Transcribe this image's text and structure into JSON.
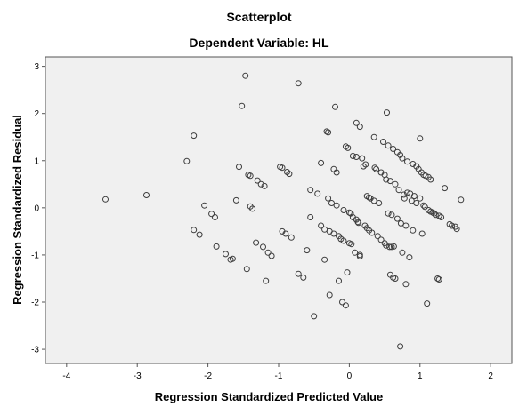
{
  "chart_data": {
    "type": "scatter",
    "title": "Scatterplot",
    "subtitle": "Dependent Variable: HL",
    "xlabel": "Regression Standardized Predicted Value",
    "ylabel": "Regression Standardized Residual",
    "xlim": [
      -4.3,
      2.3
    ],
    "ylim": [
      -3.3,
      3.2
    ],
    "x_ticks": [
      "-4",
      "-3",
      "-2",
      "-1",
      "0",
      "1",
      "2"
    ],
    "y_ticks": [
      "3",
      "2",
      "1",
      "0",
      "-1",
      "-2",
      "-3"
    ],
    "grid": false,
    "points": [
      [
        -3.45,
        0.18
      ],
      [
        -2.87,
        0.27
      ],
      [
        -2.3,
        0.99
      ],
      [
        -2.2,
        1.53
      ],
      [
        -2.2,
        -0.47
      ],
      [
        -2.12,
        -0.57
      ],
      [
        -2.05,
        0.05
      ],
      [
        -1.95,
        -0.13
      ],
      [
        -1.9,
        -0.2
      ],
      [
        -1.88,
        -0.82
      ],
      [
        -1.75,
        -0.98
      ],
      [
        -1.68,
        -1.1
      ],
      [
        -1.65,
        -1.08
      ],
      [
        -1.6,
        0.16
      ],
      [
        -1.56,
        0.87
      ],
      [
        -1.52,
        2.16
      ],
      [
        -1.47,
        2.8
      ],
      [
        -1.45,
        -1.3
      ],
      [
        -1.43,
        0.7
      ],
      [
        -1.4,
        0.68
      ],
      [
        -1.4,
        0.03
      ],
      [
        -1.37,
        -0.02
      ],
      [
        -1.32,
        -0.74
      ],
      [
        -1.3,
        0.58
      ],
      [
        -1.25,
        0.5
      ],
      [
        -1.22,
        -0.83
      ],
      [
        -1.2,
        0.46
      ],
      [
        -1.18,
        -1.55
      ],
      [
        -1.15,
        -0.95
      ],
      [
        -1.1,
        -1.02
      ],
      [
        -0.98,
        0.87
      ],
      [
        -0.95,
        0.85
      ],
      [
        -0.95,
        -0.5
      ],
      [
        -0.9,
        -0.55
      ],
      [
        -0.88,
        0.76
      ],
      [
        -0.85,
        0.72
      ],
      [
        -0.82,
        -0.63
      ],
      [
        -0.72,
        2.64
      ],
      [
        -0.72,
        -1.4
      ],
      [
        -0.65,
        -1.48
      ],
      [
        -0.6,
        -0.9
      ],
      [
        -0.55,
        0.38
      ],
      [
        -0.55,
        -0.2
      ],
      [
        -0.5,
        -2.3
      ],
      [
        -0.45,
        0.3
      ],
      [
        -0.4,
        0.95
      ],
      [
        -0.4,
        -0.38
      ],
      [
        -0.35,
        -0.46
      ],
      [
        -0.35,
        -1.1
      ],
      [
        -0.32,
        1.62
      ],
      [
        -0.3,
        1.6
      ],
      [
        -0.3,
        0.2
      ],
      [
        -0.28,
        -0.5
      ],
      [
        -0.28,
        -1.85
      ],
      [
        -0.25,
        0.1
      ],
      [
        -0.22,
        0.82
      ],
      [
        -0.22,
        -0.55
      ],
      [
        -0.2,
        2.14
      ],
      [
        -0.18,
        0.75
      ],
      [
        -0.18,
        0.05
      ],
      [
        -0.15,
        -0.6
      ],
      [
        -0.15,
        -1.55
      ],
      [
        -0.12,
        -0.66
      ],
      [
        -0.1,
        -2.0
      ],
      [
        -0.08,
        -0.05
      ],
      [
        -0.08,
        -0.7
      ],
      [
        -0.05,
        -2.07
      ],
      [
        -0.05,
        1.3
      ],
      [
        -0.03,
        -1.37
      ],
      [
        -0.02,
        1.27
      ],
      [
        0.0,
        -0.1
      ],
      [
        0.0,
        -0.75
      ],
      [
        0.02,
        -0.12
      ],
      [
        0.03,
        -0.77
      ],
      [
        0.05,
        1.1
      ],
      [
        0.05,
        -0.2
      ],
      [
        0.08,
        -0.95
      ],
      [
        0.1,
        1.8
      ],
      [
        0.1,
        1.08
      ],
      [
        0.1,
        -0.25
      ],
      [
        0.12,
        -0.3
      ],
      [
        0.13,
        -0.32
      ],
      [
        0.15,
        1.72
      ],
      [
        0.15,
        -1.0
      ],
      [
        0.15,
        -1.03
      ],
      [
        0.18,
        1.05
      ],
      [
        0.2,
        0.88
      ],
      [
        0.22,
        -0.38
      ],
      [
        0.23,
        0.92
      ],
      [
        0.25,
        0.25
      ],
      [
        0.25,
        -0.43
      ],
      [
        0.28,
        -0.48
      ],
      [
        0.28,
        0.22
      ],
      [
        0.3,
        0.2
      ],
      [
        0.32,
        -0.53
      ],
      [
        0.35,
        1.5
      ],
      [
        0.35,
        0.15
      ],
      [
        0.36,
        0.85
      ],
      [
        0.38,
        0.82
      ],
      [
        0.4,
        -0.6
      ],
      [
        0.42,
        0.1
      ],
      [
        0.45,
        -0.68
      ],
      [
        0.45,
        0.75
      ],
      [
        0.48,
        1.4
      ],
      [
        0.5,
        0.7
      ],
      [
        0.5,
        -0.75
      ],
      [
        0.52,
        -0.8
      ],
      [
        0.52,
        0.6
      ],
      [
        0.53,
        2.02
      ],
      [
        0.55,
        1.32
      ],
      [
        0.55,
        -0.12
      ],
      [
        0.57,
        -0.83
      ],
      [
        0.58,
        0.57
      ],
      [
        0.58,
        -1.42
      ],
      [
        0.6,
        -0.15
      ],
      [
        0.6,
        -0.83
      ],
      [
        0.62,
        1.25
      ],
      [
        0.62,
        -1.48
      ],
      [
        0.63,
        -0.82
      ],
      [
        0.65,
        0.5
      ],
      [
        0.65,
        -1.5
      ],
      [
        0.68,
        1.18
      ],
      [
        0.68,
        -0.23
      ],
      [
        0.7,
        0.38
      ],
      [
        0.72,
        -2.94
      ],
      [
        0.72,
        1.12
      ],
      [
        0.73,
        -0.33
      ],
      [
        0.75,
        1.05
      ],
      [
        0.75,
        -0.95
      ],
      [
        0.77,
        0.28
      ],
      [
        0.78,
        0.2
      ],
      [
        0.8,
        -1.62
      ],
      [
        0.8,
        -0.38
      ],
      [
        0.82,
        0.32
      ],
      [
        0.82,
        0.98
      ],
      [
        0.85,
        -1.05
      ],
      [
        0.86,
        0.3
      ],
      [
        0.88,
        0.15
      ],
      [
        0.9,
        0.93
      ],
      [
        0.9,
        -0.48
      ],
      [
        0.92,
        0.25
      ],
      [
        0.95,
        0.88
      ],
      [
        0.95,
        0.1
      ],
      [
        0.98,
        0.82
      ],
      [
        1.0,
        1.47
      ],
      [
        1.0,
        0.2
      ],
      [
        1.02,
        0.75
      ],
      [
        1.03,
        -0.55
      ],
      [
        1.05,
        0.05
      ],
      [
        1.05,
        0.7
      ],
      [
        1.07,
        0.02
      ],
      [
        1.08,
        0.68
      ],
      [
        1.1,
        -2.03
      ],
      [
        1.12,
        0.65
      ],
      [
        1.12,
        -0.05
      ],
      [
        1.15,
        0.6
      ],
      [
        1.15,
        -0.08
      ],
      [
        1.18,
        -0.1
      ],
      [
        1.2,
        -0.12
      ],
      [
        1.22,
        -0.15
      ],
      [
        1.25,
        -1.5
      ],
      [
        1.27,
        -1.52
      ],
      [
        1.27,
        -0.17
      ],
      [
        1.3,
        -0.2
      ],
      [
        1.35,
        0.42
      ],
      [
        1.42,
        -0.35
      ],
      [
        1.45,
        -0.38
      ],
      [
        1.5,
        -0.4
      ],
      [
        1.52,
        -0.45
      ],
      [
        1.58,
        0.17
      ]
    ]
  }
}
